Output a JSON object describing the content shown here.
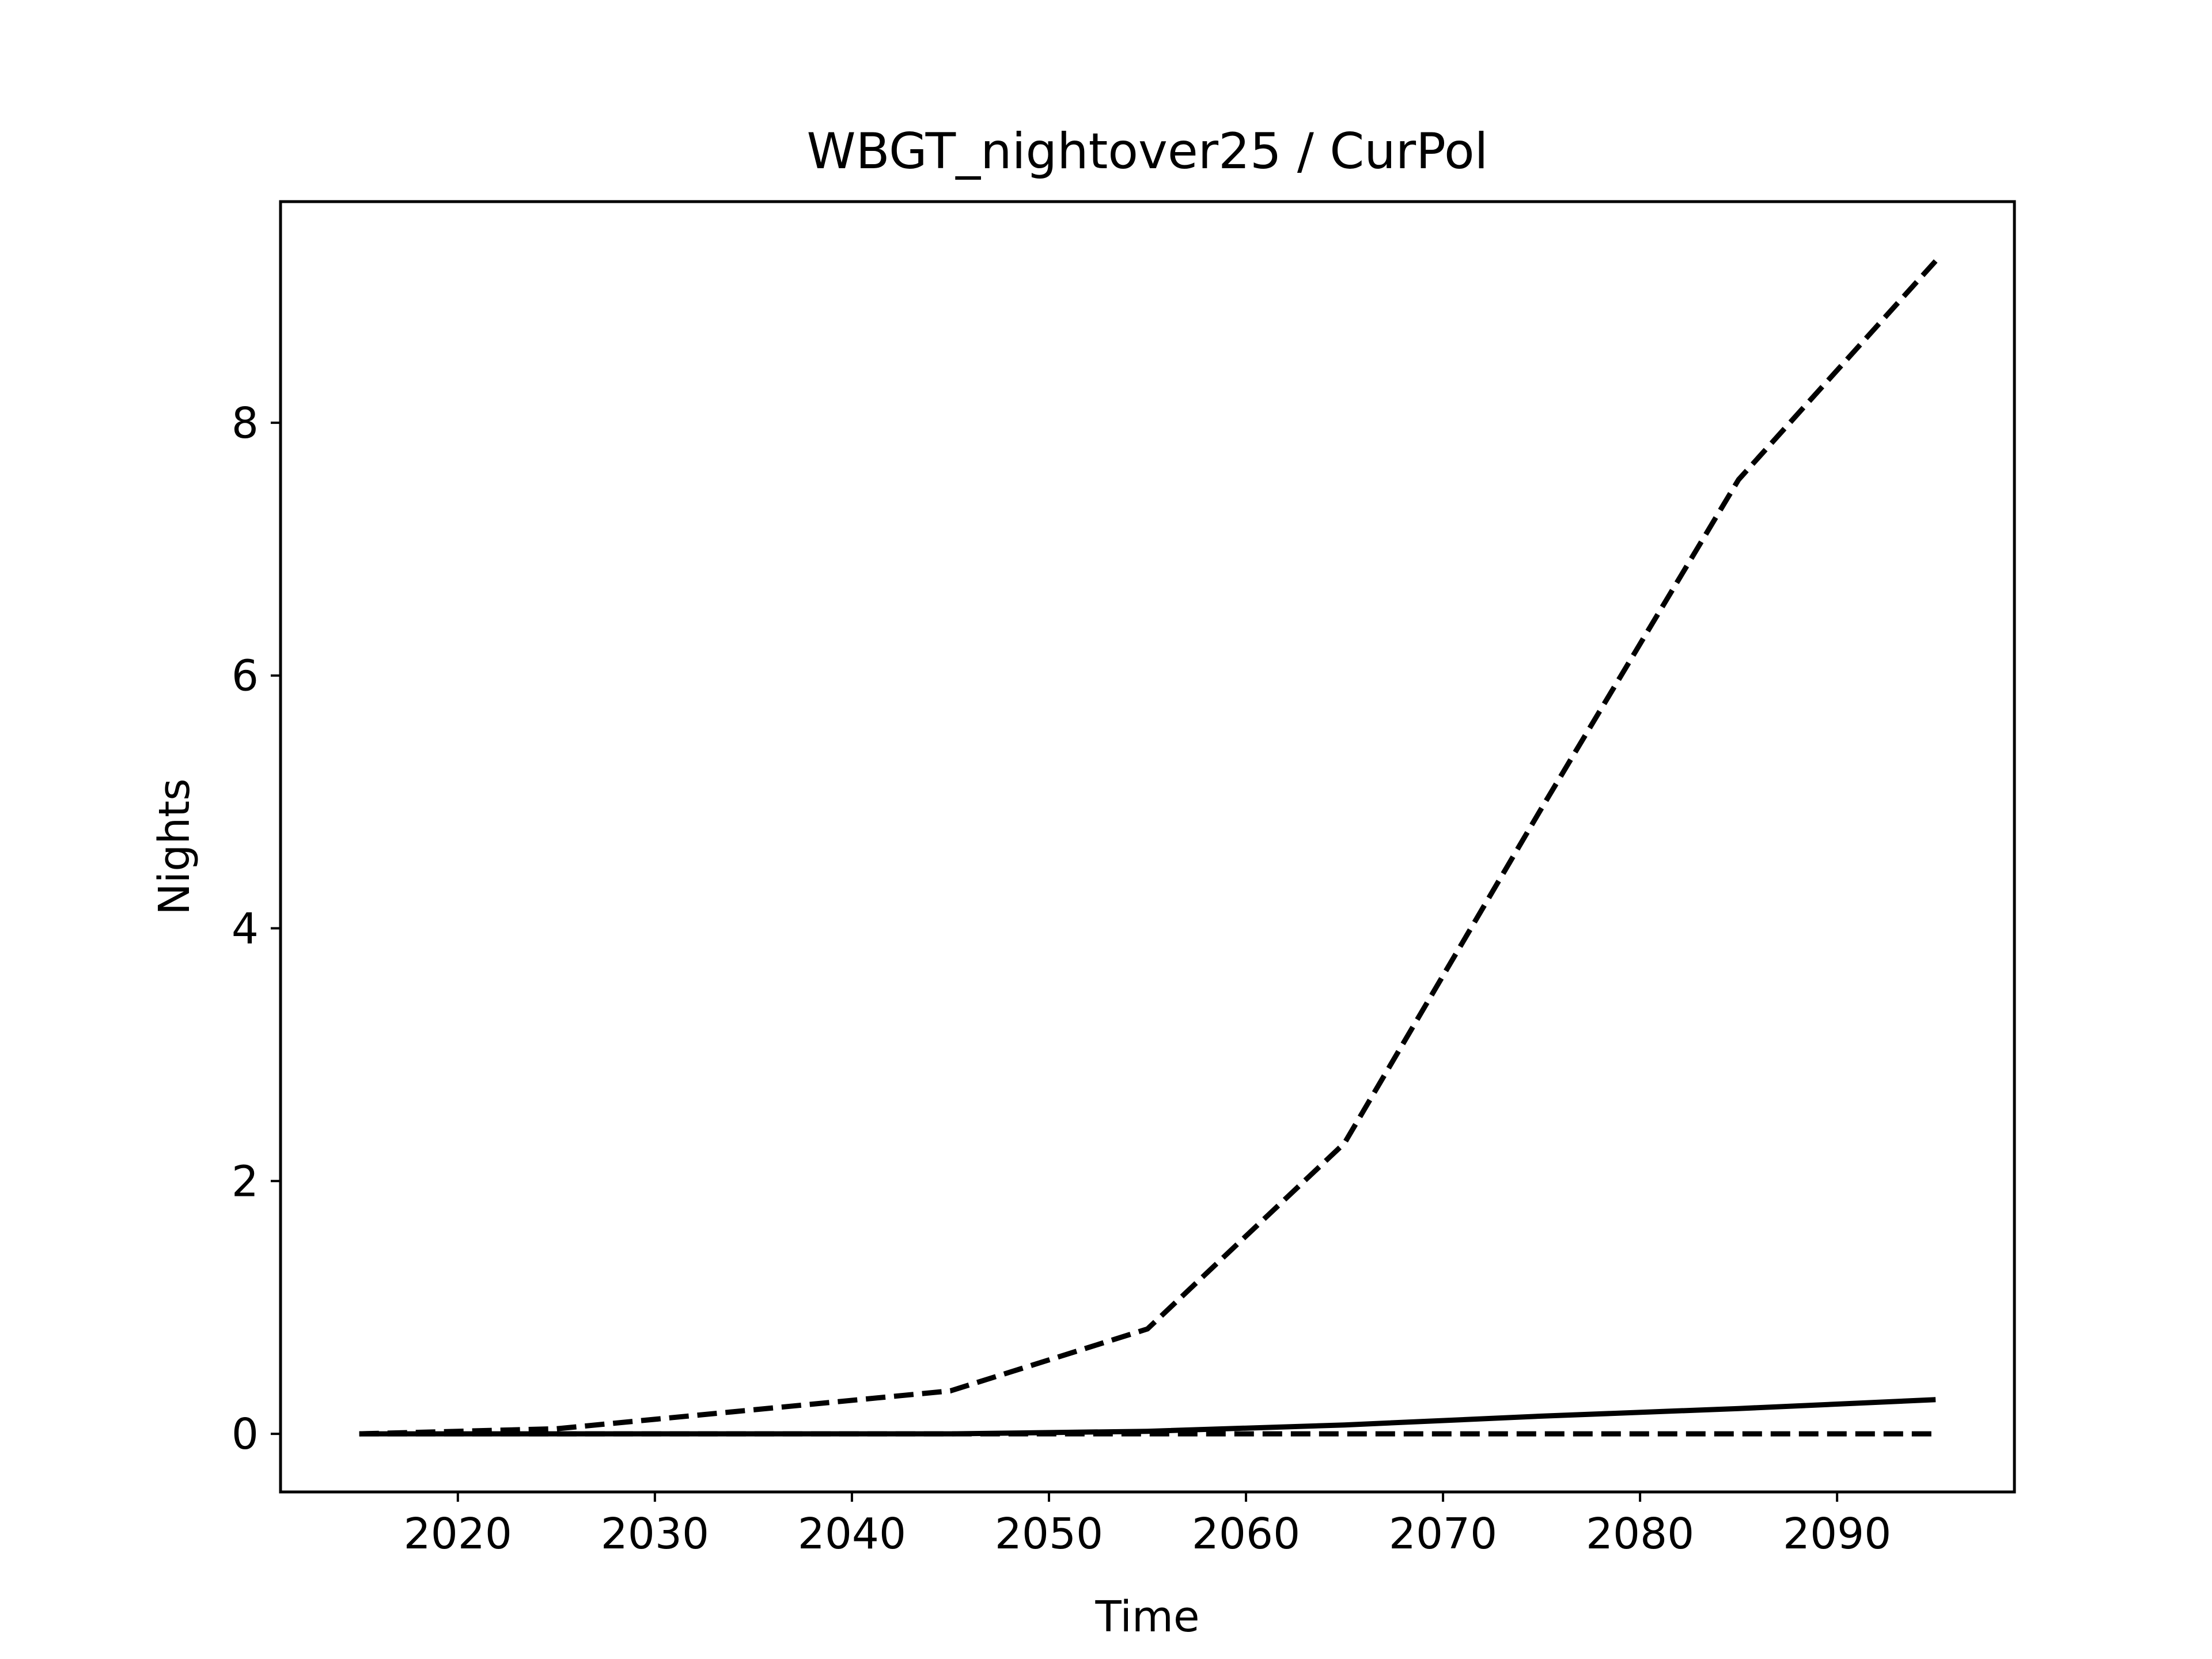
{
  "chart_data": {
    "type": "line",
    "title": "WBGT_nightover25 / CurPol",
    "xlabel": "Time",
    "ylabel": "Nights",
    "xlim": [
      2011,
      2099
    ],
    "ylim": [
      -0.46,
      9.75
    ],
    "xticks": [
      2020,
      2030,
      2040,
      2050,
      2060,
      2070,
      2080,
      2090
    ],
    "yticks": [
      0,
      2,
      4,
      6,
      8
    ],
    "grid": false,
    "legend": "none",
    "x": [
      2015,
      2025,
      2035,
      2045,
      2055,
      2065,
      2075,
      2085,
      2095
    ],
    "series": [
      {
        "style": "dashed",
        "color": "#000000",
        "values": [
          0.0,
          0.04,
          0.19,
          0.34,
          0.83,
          2.3,
          4.95,
          7.55,
          9.28
        ]
      },
      {
        "style": "solid",
        "color": "#000000",
        "values": [
          0.0,
          0.0,
          0.0,
          0.0,
          0.02,
          0.07,
          0.14,
          0.2,
          0.27
        ]
      },
      {
        "style": "dashed",
        "color": "#000000",
        "values": [
          0.0,
          0.0,
          0.0,
          0.0,
          0.0,
          0.0,
          0.0,
          0.0,
          0.0
        ]
      }
    ]
  }
}
